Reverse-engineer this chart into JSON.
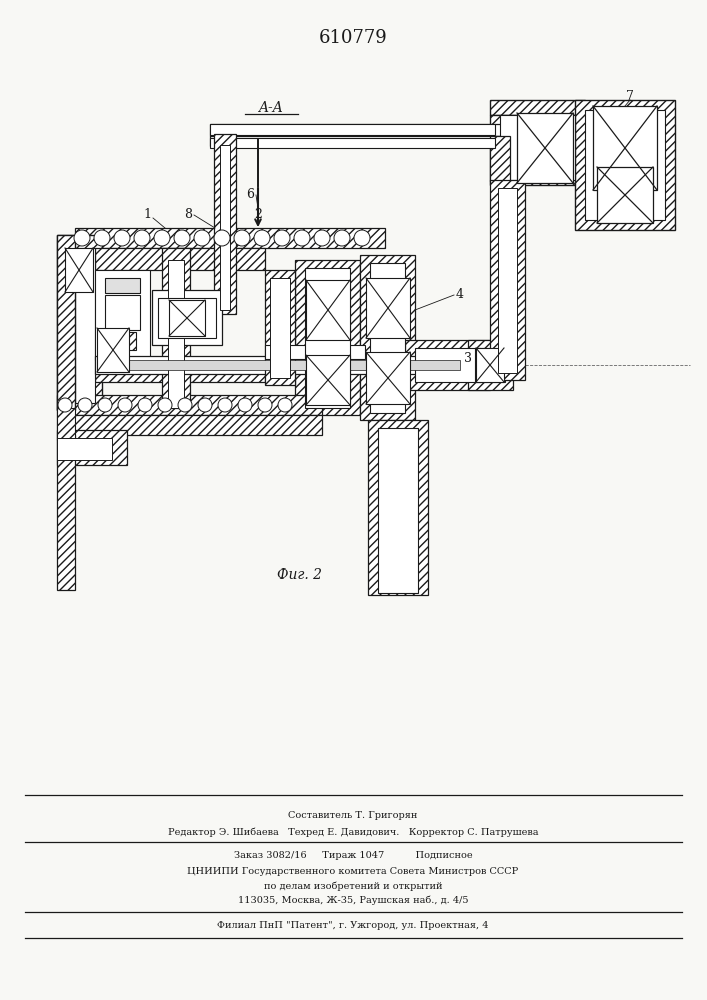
{
  "patent_number": "610779",
  "section_label": "A-A",
  "fig_label": "Фиг. 2",
  "bg_color": "#f8f8f5",
  "line_color": "#1a1a1a",
  "footer_lines": [
    "Составитель Т. Григорян",
    "Редактор Э. Шибаева   Техред Е. Давидович.   Корректор С. Патрушева",
    "Заказ 3082/16     Тираж 1047          Подписное",
    "ЦНИИПИ Государственного комитета Совета Министров СССР",
    "по делам изобретений и открытий",
    "113035, Москва, Ж-35, Раушская наб., д. 4/5",
    "Филиал ПнП \"Патент\", г. Ужгород, ул. Проектная, 4"
  ]
}
